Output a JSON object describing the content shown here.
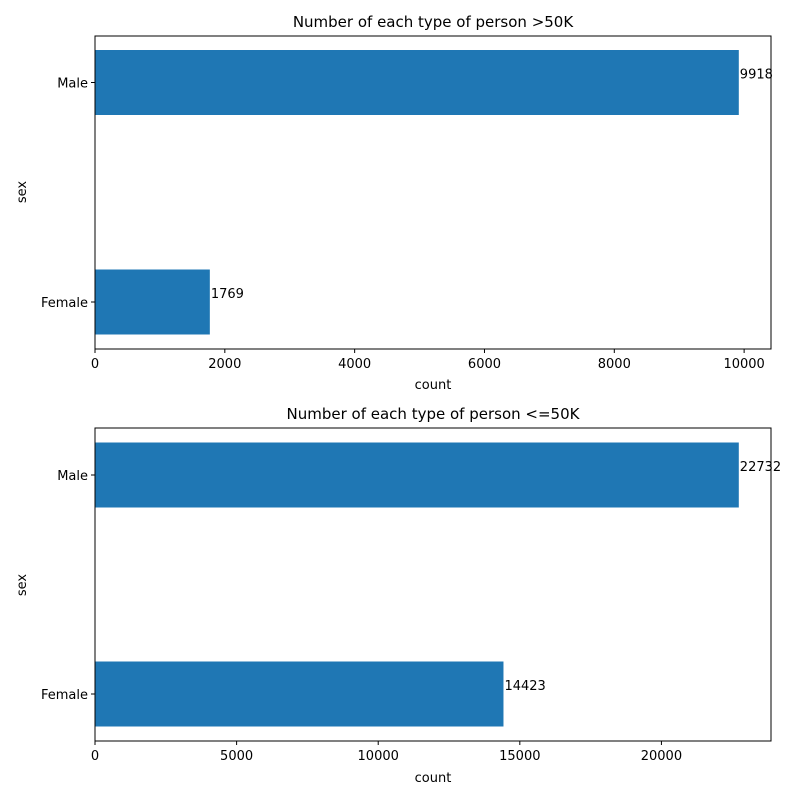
{
  "chart_data": [
    {
      "type": "bar",
      "orientation": "horizontal",
      "title": "Number of each type of person >50K",
      "xlabel": "count",
      "ylabel": "sex",
      "categories": [
        "Male",
        "Female"
      ],
      "values": [
        9918,
        1769
      ],
      "xlim": [
        0,
        10414
      ],
      "xticks": [
        0,
        2000,
        4000,
        6000,
        8000,
        10000
      ],
      "xtick_labels": [
        "0",
        "2000",
        "4000",
        "6000",
        "8000",
        "10000"
      ],
      "grid": false,
      "legend": "none",
      "bar_color": "#1f77b4"
    },
    {
      "type": "bar",
      "orientation": "horizontal",
      "title": "Number of each type of person <=50K",
      "xlabel": "count",
      "ylabel": "sex",
      "categories": [
        "Male",
        "Female"
      ],
      "values": [
        22732,
        14423
      ],
      "xlim": [
        0,
        23869
      ],
      "xticks": [
        0,
        5000,
        10000,
        15000,
        20000
      ],
      "xtick_labels": [
        "0",
        "5000",
        "10000",
        "15000",
        "20000"
      ],
      "grid": false,
      "legend": "none",
      "bar_color": "#1f77b4"
    }
  ]
}
